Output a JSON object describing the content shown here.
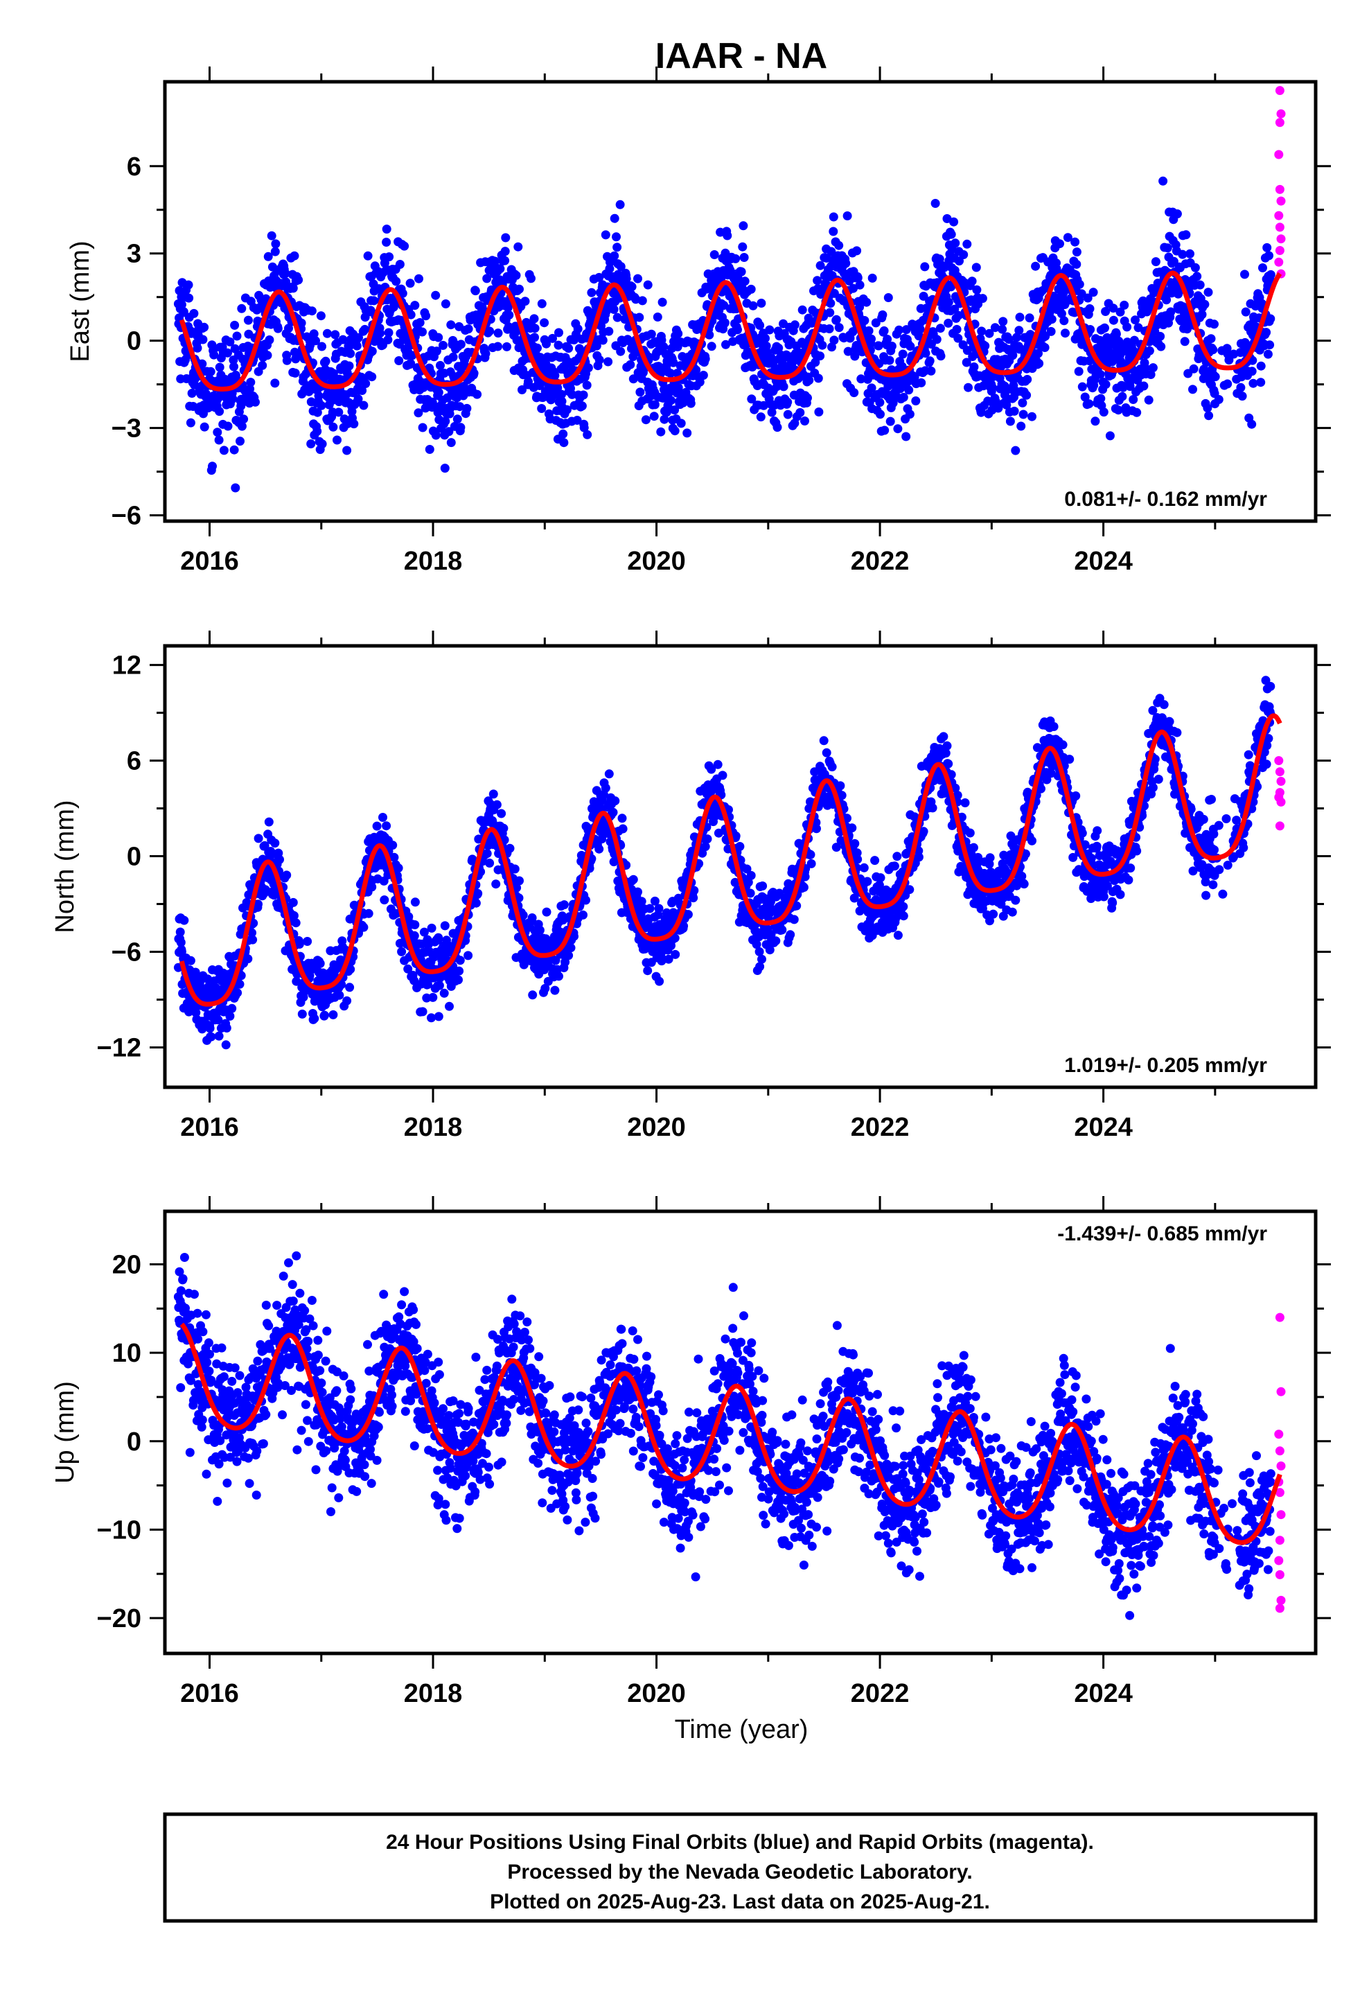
{
  "title": "IAAR - NA",
  "xlabel": "Time (year)",
  "footer": {
    "line1": "24 Hour Positions Using Final Orbits (blue) and Rapid Orbits (magenta).",
    "line2": "Processed by the Nevada Geodetic Laboratory.",
    "line3": "Plotted on 2025-Aug-23. Last data on 2025-Aug-21."
  },
  "colors": {
    "final_orbits": "#0000ff",
    "rapid_orbits": "#ff00ff",
    "model_fit": "#ff0000"
  },
  "chart_data": [
    {
      "type": "scatter",
      "ylabel": "East (mm)",
      "rate": "0.081+/- 0.162 mm/yr",
      "rate_position": "bottom-right",
      "xlim": [
        2015.6,
        2025.9
      ],
      "ylim": [
        -6.2,
        8.9
      ],
      "xticks": [
        2016,
        2018,
        2020,
        2022,
        2024
      ],
      "yticks": [
        6,
        3,
        0,
        -3,
        -6
      ],
      "ytick_labels": [
        "6",
        "3",
        "0",
        "−3",
        "−6"
      ],
      "model": {
        "start": 2015.75,
        "end": 2025.58,
        "mean": 0.0,
        "trend": 0.081,
        "annual_amp": 1.65,
        "annual_peak": 0.62,
        "semi_amp": 0.35,
        "semi_peak": 0.62
      },
      "noise": 1.0,
      "series_final": {
        "start": 2015.72,
        "end": 2025.5,
        "step": 0.0035
      },
      "rapid_points": [
        [
          2025.58,
          8.6
        ],
        [
          2025.59,
          7.8
        ],
        [
          2025.58,
          7.5
        ],
        [
          2025.57,
          6.4
        ],
        [
          2025.58,
          5.2
        ],
        [
          2025.59,
          4.8
        ],
        [
          2025.57,
          4.3
        ],
        [
          2025.58,
          3.9
        ],
        [
          2025.59,
          3.5
        ],
        [
          2025.58,
          3.1
        ],
        [
          2025.57,
          2.7
        ],
        [
          2025.59,
          2.3
        ]
      ]
    },
    {
      "type": "scatter",
      "ylabel": "North (mm)",
      "rate": "1.019+/- 0.205 mm/yr",
      "rate_position": "bottom-right",
      "xlim": [
        2015.6,
        2025.9
      ],
      "ylim": [
        -14.5,
        13.2
      ],
      "xticks": [
        2016,
        2018,
        2020,
        2022,
        2024
      ],
      "yticks": [
        12,
        6,
        0,
        -6,
        -12
      ],
      "ytick_labels": [
        "12",
        "6",
        "0",
        "−6",
        "−12"
      ],
      "model": {
        "start": 2015.75,
        "end": 2025.58,
        "mean": -1.3,
        "trend": 1.019,
        "annual_amp": 4.2,
        "annual_peak": 0.52,
        "semi_amp": 0.9,
        "semi_peak": 0.52
      },
      "noise": 1.1,
      "series_final": {
        "start": 2015.72,
        "end": 2025.5,
        "step": 0.0035
      },
      "rapid_points": [
        [
          2025.57,
          6.0
        ],
        [
          2025.58,
          5.3
        ],
        [
          2025.59,
          4.7
        ],
        [
          2025.58,
          4.0
        ],
        [
          2025.57,
          3.7
        ],
        [
          2025.59,
          3.4
        ],
        [
          2025.58,
          1.9
        ]
      ]
    },
    {
      "type": "scatter",
      "ylabel": "Up (mm)",
      "rate": "-1.439+/- 0.685 mm/yr",
      "rate_position": "top-right",
      "xlim": [
        2015.6,
        2025.9
      ],
      "ylim": [
        -24.0,
        26.0
      ],
      "xticks": [
        2016,
        2018,
        2020,
        2022,
        2024
      ],
      "yticks": [
        20,
        10,
        0,
        -10,
        -20
      ],
      "ytick_labels": [
        "20",
        "10",
        "0",
        "−10",
        "−20"
      ],
      "model": {
        "start": 2015.75,
        "end": 2025.58,
        "mean": 0.0,
        "trend": -1.439,
        "annual_amp": 5.6,
        "annual_peak": 0.72,
        "semi_amp": 0.8,
        "semi_peak": 0.72
      },
      "noise": 3.6,
      "series_final": {
        "start": 2015.72,
        "end": 2025.5,
        "step": 0.0035
      },
      "rapid_points": [
        [
          2025.58,
          14.0
        ],
        [
          2025.59,
          5.6
        ],
        [
          2025.57,
          0.8
        ],
        [
          2025.58,
          -1.1
        ],
        [
          2025.59,
          -2.8
        ],
        [
          2025.57,
          -4.6
        ],
        [
          2025.58,
          -5.8
        ],
        [
          2025.59,
          -8.3
        ],
        [
          2025.58,
          -11.2
        ],
        [
          2025.57,
          -13.5
        ],
        [
          2025.58,
          -15.1
        ],
        [
          2025.59,
          -18.0
        ],
        [
          2025.58,
          -18.9
        ]
      ]
    }
  ]
}
